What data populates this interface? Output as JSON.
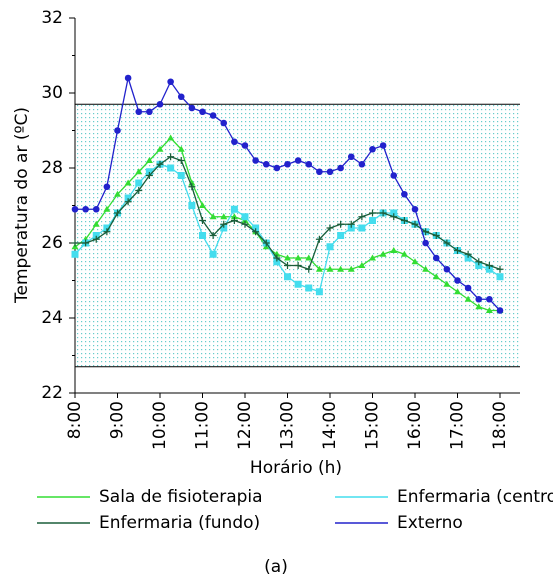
{
  "chart_data": {
    "type": "line",
    "ylabel": "Temperatura do ar (ºC)",
    "xlabel": "Horário (h)",
    "caption": "(a)",
    "categories": [
      "8:00",
      null,
      null,
      null,
      "9:00",
      null,
      null,
      null,
      "10:00",
      null,
      null,
      null,
      "11:00",
      null,
      null,
      null,
      "12:00",
      null,
      null,
      null,
      "13:00",
      null,
      null,
      null,
      "14:00",
      null,
      null,
      null,
      "15:00",
      null,
      null,
      null,
      "16:00",
      null,
      null,
      null,
      "17:00",
      null,
      null,
      null,
      "18:00"
    ],
    "ylim": [
      22,
      32
    ],
    "yticks": [
      22,
      24,
      26,
      28,
      30,
      32
    ],
    "reference_band": [
      22.7,
      29.7
    ],
    "series": [
      {
        "name": "Sala de fisioterapia",
        "color": "#33dd33",
        "marker": "triangle",
        "values": [
          25.9,
          26.1,
          26.5,
          26.9,
          27.3,
          27.6,
          27.9,
          28.2,
          28.5,
          28.8,
          28.5,
          27.6,
          27.0,
          26.7,
          26.7,
          26.7,
          26.6,
          26.3,
          25.9,
          25.7,
          25.6,
          25.6,
          25.6,
          25.3,
          25.3,
          25.3,
          25.3,
          25.4,
          25.6,
          25.7,
          25.8,
          25.7,
          25.5,
          25.3,
          25.1,
          24.9,
          24.7,
          24.5,
          24.3,
          24.2,
          24.2
        ]
      },
      {
        "name": "Enfermaria (centro)",
        "color": "#44ddee",
        "marker": "square",
        "values": [
          25.7,
          26.0,
          26.2,
          26.4,
          26.8,
          27.2,
          27.6,
          27.9,
          28.1,
          28.0,
          27.8,
          27.0,
          26.2,
          25.7,
          26.4,
          26.9,
          26.7,
          26.4,
          26.0,
          25.5,
          25.1,
          24.9,
          24.8,
          24.7,
          25.9,
          26.2,
          26.4,
          26.4,
          26.6,
          26.8,
          26.8,
          26.6,
          26.5,
          26.3,
          26.2,
          26.0,
          25.8,
          25.6,
          25.4,
          25.3,
          25.1
        ]
      },
      {
        "name": "Enfermaria (fundo)",
        "color": "#1a5e3a",
        "marker": "plus",
        "values": [
          26.0,
          26.0,
          26.1,
          26.3,
          26.8,
          27.1,
          27.4,
          27.8,
          28.1,
          28.3,
          28.2,
          27.5,
          26.6,
          26.2,
          26.5,
          26.6,
          26.5,
          26.3,
          26.0,
          25.6,
          25.4,
          25.4,
          25.3,
          26.1,
          26.4,
          26.5,
          26.5,
          26.7,
          26.8,
          26.8,
          26.7,
          26.6,
          26.5,
          26.3,
          26.2,
          26.0,
          25.8,
          25.7,
          25.5,
          25.4,
          25.3
        ]
      },
      {
        "name": "Externo",
        "color": "#2222cc",
        "marker": "circle",
        "values": [
          26.9,
          26.9,
          26.9,
          27.5,
          29.0,
          30.4,
          29.5,
          29.5,
          29.7,
          30.3,
          29.9,
          29.6,
          29.5,
          29.4,
          29.2,
          28.7,
          28.6,
          28.2,
          28.1,
          28.0,
          28.1,
          28.2,
          28.1,
          27.9,
          27.9,
          28.0,
          28.3,
          28.1,
          28.5,
          28.6,
          27.8,
          27.3,
          26.9,
          26.0,
          25.6,
          25.3,
          25.0,
          24.8,
          24.5,
          24.5,
          24.2
        ]
      }
    ]
  }
}
